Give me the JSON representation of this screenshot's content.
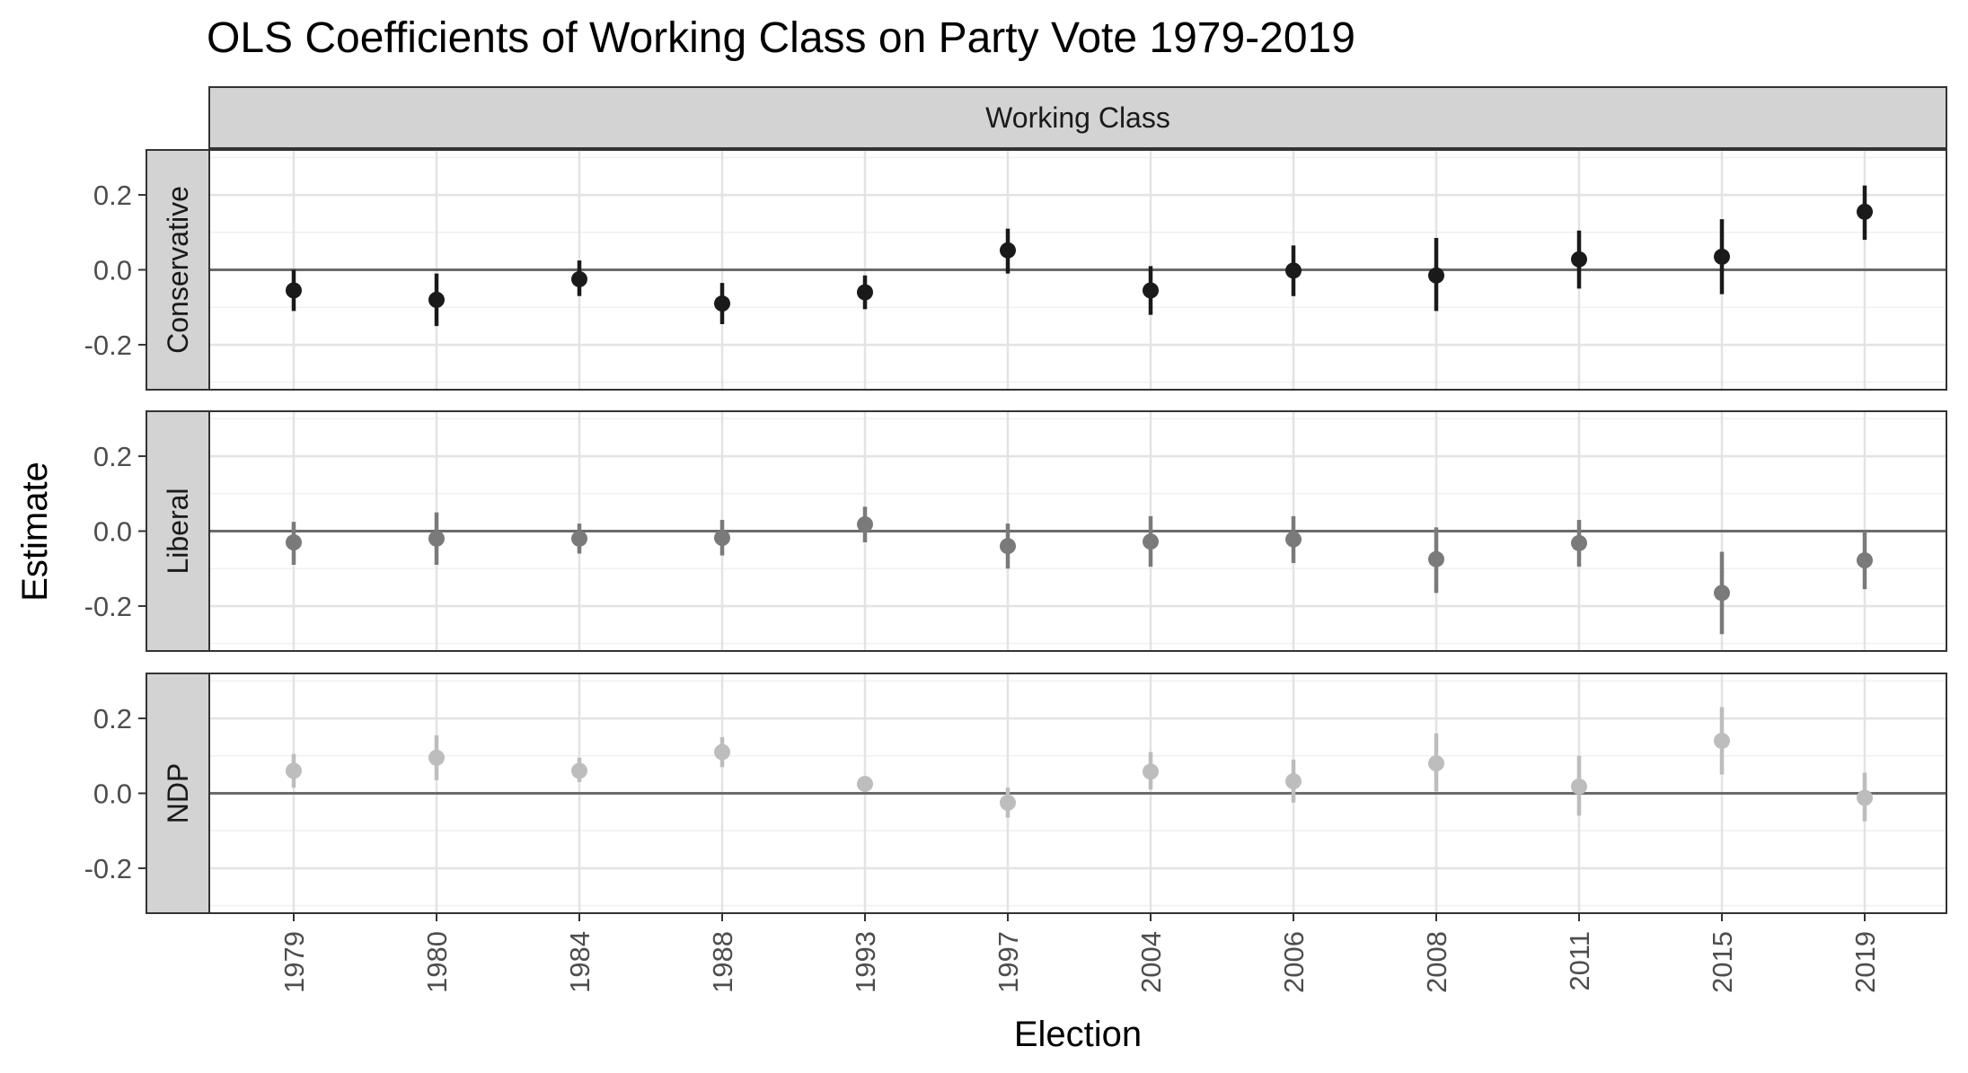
{
  "chart_data": {
    "type": "scatter",
    "title": "OLS Coefficients of Working Class on Party Vote 1979-2019",
    "xlabel": "Election",
    "ylabel": "Estimate",
    "column_strip": "Working Class",
    "categories": [
      "1979",
      "1980",
      "1984",
      "1988",
      "1993",
      "1997",
      "2004",
      "2006",
      "2008",
      "2011",
      "2015",
      "2019"
    ],
    "ylim": [
      -0.32,
      0.32
    ],
    "yticks": [
      -0.2,
      0.0,
      0.2
    ],
    "ytick_labels": [
      "-0.2",
      "0.0",
      "0.2"
    ],
    "reference_line": 0.0,
    "grid": true,
    "panels": [
      {
        "name": "Conservative",
        "color": "#1a1a1a",
        "estimates": [
          -0.055,
          -0.08,
          -0.025,
          -0.09,
          -0.06,
          0.052,
          -0.055,
          -0.002,
          -0.015,
          0.028,
          0.035,
          0.155
        ],
        "lower": [
          -0.11,
          -0.15,
          -0.07,
          -0.145,
          -0.105,
          -0.01,
          -0.12,
          -0.07,
          -0.11,
          -0.05,
          -0.065,
          0.08
        ],
        "upper": [
          0.0,
          -0.01,
          0.025,
          -0.035,
          -0.015,
          0.11,
          0.01,
          0.065,
          0.085,
          0.105,
          0.135,
          0.225
        ]
      },
      {
        "name": "Liberal",
        "color": "#7a7a7a",
        "estimates": [
          -0.03,
          -0.02,
          -0.02,
          -0.018,
          0.018,
          -0.04,
          -0.028,
          -0.022,
          -0.075,
          -0.032,
          -0.165,
          -0.078
        ],
        "lower": [
          -0.09,
          -0.09,
          -0.06,
          -0.065,
          -0.03,
          -0.1,
          -0.095,
          -0.085,
          -0.165,
          -0.095,
          -0.275,
          -0.155
        ],
        "upper": [
          0.025,
          0.05,
          0.02,
          0.03,
          0.065,
          0.02,
          0.04,
          0.04,
          0.01,
          0.03,
          -0.055,
          0.0
        ]
      },
      {
        "name": "NDP",
        "color": "#bdbdbd",
        "estimates": [
          0.06,
          0.095,
          0.06,
          0.11,
          0.025,
          -0.025,
          0.058,
          0.032,
          0.08,
          0.018,
          0.14,
          -0.012
        ],
        "lower": [
          0.015,
          0.035,
          0.03,
          0.07,
          0.01,
          -0.065,
          0.01,
          -0.025,
          0.005,
          -0.06,
          0.05,
          -0.075
        ],
        "upper": [
          0.105,
          0.155,
          0.095,
          0.15,
          0.045,
          0.015,
          0.11,
          0.09,
          0.16,
          0.1,
          0.23,
          0.055
        ]
      }
    ]
  }
}
